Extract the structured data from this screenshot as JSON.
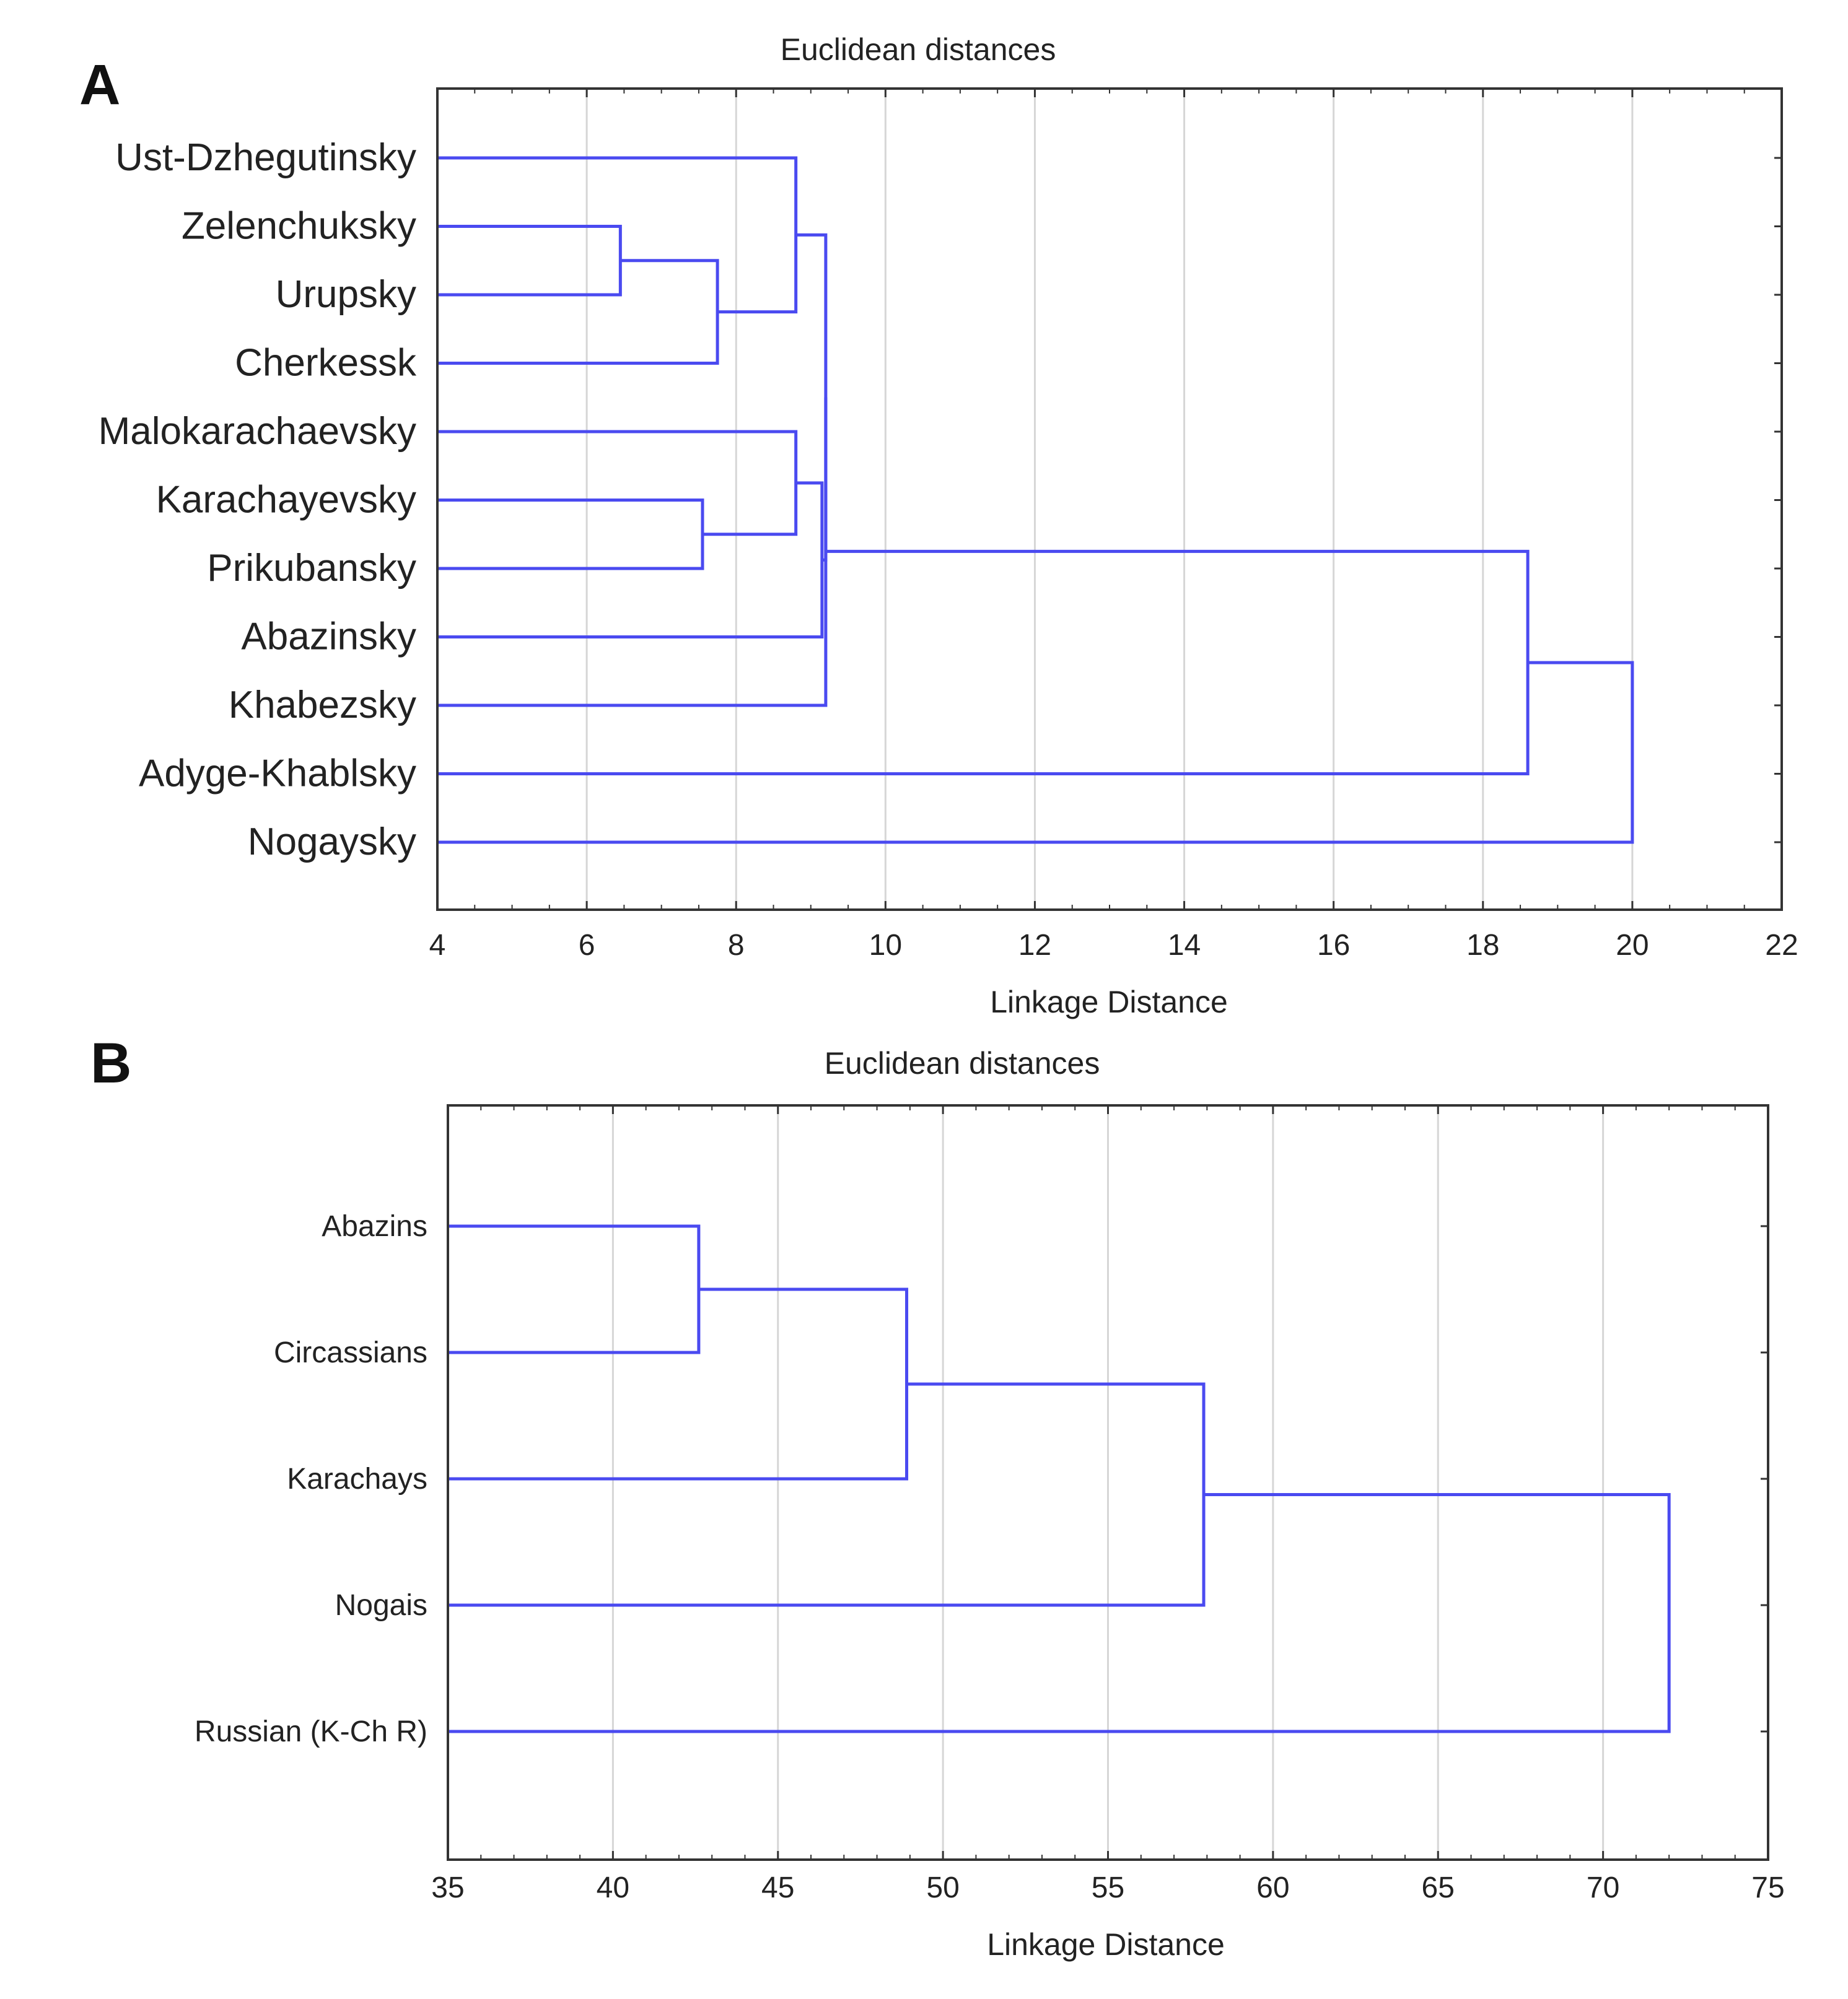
{
  "chart_data": [
    {
      "panel": "A",
      "type": "dendrogram",
      "title": "Euclidean distances",
      "xlabel": "Linkage Distance",
      "xlim": [
        4,
        22
      ],
      "xticks": [
        4,
        6,
        8,
        10,
        12,
        14,
        16,
        18,
        20,
        22
      ],
      "grid": true,
      "leaves": [
        "Ust-Dzhegutinsky",
        "Zelenchuksky",
        "Urupsky",
        "Cherkessk",
        "Malokarachaevsky",
        "Karachayevsky",
        "Prikubansky",
        "Abazinsky",
        "Khabezsky",
        "Adyge-Khablsky",
        "Nogaysky"
      ],
      "merges": [
        {
          "a": "L1",
          "b": "L2",
          "height": 6.45
        },
        {
          "a": "M0",
          "b": "L3",
          "height": 7.75
        },
        {
          "a": "L0",
          "b": "M1",
          "height": 8.8
        },
        {
          "a": "L5",
          "b": "L6",
          "height": 7.55
        },
        {
          "a": "L4",
          "b": "M3",
          "height": 8.8
        },
        {
          "a": "M4",
          "b": "L7",
          "height": 9.15
        },
        {
          "a": "M2",
          "b": "M5",
          "height": 9.2
        },
        {
          "a": "M6",
          "b": "L8",
          "height": 9.2
        },
        {
          "a": "M7",
          "b": "L9",
          "height": 18.6
        },
        {
          "a": "M8",
          "b": "L10",
          "height": 20.0
        }
      ]
    },
    {
      "panel": "B",
      "type": "dendrogram",
      "title": "Euclidean distances",
      "xlabel": "Linkage Distance",
      "xlim": [
        35,
        75
      ],
      "xticks": [
        35,
        40,
        45,
        50,
        55,
        60,
        65,
        70,
        75
      ],
      "grid": true,
      "leaves": [
        "Abazins",
        "Circassians",
        "Karachays",
        "Nogais",
        "Russian (K-Ch R)"
      ],
      "merges": [
        {
          "a": "L0",
          "b": "L1",
          "height": 42.6
        },
        {
          "a": "M0",
          "b": "L2",
          "height": 48.9
        },
        {
          "a": "M1",
          "b": "L3",
          "height": 57.9
        },
        {
          "a": "M2",
          "b": "L4",
          "height": 72.0
        }
      ]
    }
  ],
  "colors": {
    "link": "#4a4af0",
    "grid": "#d6d6d6",
    "frame": "#333333"
  }
}
